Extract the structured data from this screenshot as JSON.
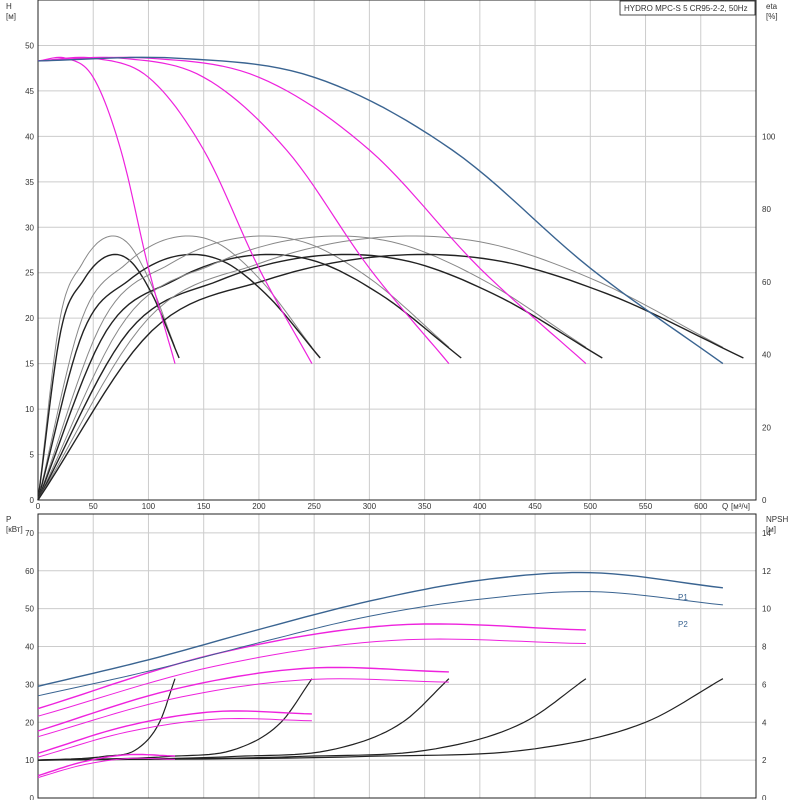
{
  "chart_data": [
    {
      "type": "line",
      "title": "HYDRO MPC-S 5 CR95-2-2, 50Hz",
      "xlabel": "Q [м³/ч]",
      "xlabel_parts": [
        "Q",
        "[м³/ч]"
      ],
      "ylabel_lines": [
        "H",
        "[м]"
      ],
      "ylabel_right_lines": [
        "eta",
        "[%]"
      ],
      "xlim": [
        0,
        650
      ],
      "ylim": [
        0,
        55
      ],
      "ylim_right": [
        0,
        137.5
      ],
      "xticks": [
        "0",
        "50",
        "100",
        "150",
        "200",
        "250",
        "300",
        "350",
        "400",
        "450",
        "500",
        "550",
        "600"
      ],
      "yticks": [
        "0",
        "5",
        "10",
        "15",
        "20",
        "25",
        "30",
        "35",
        "40",
        "45",
        "50"
      ],
      "yticks_right": [
        "0",
        "20",
        "40",
        "60",
        "80",
        "100"
      ],
      "grid": true,
      "colors": {
        "head_total": "#3a6491",
        "head_pumps": "#ee22dd",
        "eta": "#222222",
        "eta_thin": "#888888"
      },
      "head_curves": [
        {
          "pumps": 1,
          "x": [
            0,
            25,
            50,
            75,
            100,
            124
          ],
          "y": [
            48.3,
            48.6,
            46.5,
            38.5,
            25.5,
            15.0
          ]
        },
        {
          "pumps": 2,
          "x": [
            0,
            50,
            100,
            150,
            200,
            248
          ],
          "y": [
            48.3,
            48.6,
            46.5,
            38.5,
            25.5,
            15.0
          ]
        },
        {
          "pumps": 3,
          "x": [
            0,
            75,
            150,
            225,
            300,
            372
          ],
          "y": [
            48.3,
            48.6,
            46.5,
            38.5,
            25.5,
            15.0
          ]
        },
        {
          "pumps": 4,
          "x": [
            0,
            100,
            200,
            300,
            400,
            496
          ],
          "y": [
            48.3,
            48.6,
            46.5,
            38.5,
            25.5,
            15.0
          ]
        },
        {
          "pumps": 5,
          "x": [
            0,
            125,
            250,
            375,
            500,
            620
          ],
          "y": [
            48.3,
            48.6,
            46.5,
            38.5,
            25.5,
            15.0
          ]
        }
      ],
      "eta_curves": [
        {
          "pumps": 1,
          "x": [
            0,
            20,
            40,
            60,
            80,
            100,
            124
          ],
          "y": [
            0,
            50,
            65,
            72,
            71,
            61,
            42
          ]
        },
        {
          "pumps": 2,
          "x": [
            0,
            40,
            80,
            120,
            160,
            200,
            248
          ],
          "y": [
            0,
            50,
            65,
            72,
            71,
            61,
            42
          ]
        },
        {
          "pumps": 3,
          "x": [
            0,
            60,
            120,
            180,
            240,
            300,
            372
          ],
          "y": [
            0,
            50,
            65,
            72,
            71,
            61,
            42
          ]
        },
        {
          "pumps": 4,
          "x": [
            0,
            80,
            160,
            240,
            320,
            400,
            496
          ],
          "y": [
            0,
            50,
            65,
            72,
            71,
            61,
            42
          ]
        },
        {
          "pumps": 5,
          "x": [
            0,
            100,
            200,
            300,
            400,
            500,
            620
          ],
          "y": [
            0,
            50,
            65,
            72,
            71,
            61,
            42
          ]
        }
      ]
    },
    {
      "type": "line",
      "ylabel_lines": [
        "P",
        "[кВт]"
      ],
      "ylabel_right_lines": [
        "NPSH",
        "[м]"
      ],
      "xlim": [
        0,
        650
      ],
      "ylim": [
        0,
        75
      ],
      "ylim_right": [
        0,
        15
      ],
      "yticks": [
        "0",
        "10",
        "20",
        "30",
        "40",
        "50",
        "60",
        "70"
      ],
      "yticks_right": [
        "0",
        "2",
        "4",
        "6",
        "8",
        "10",
        "12",
        "14"
      ],
      "grid": true,
      "series": [
        {
          "name": "P1",
          "x": [
            0,
            100,
            200,
            300,
            400,
            500,
            620
          ],
          "y": [
            29.5,
            36.5,
            44.5,
            52.0,
            57.5,
            59.5,
            55.5
          ]
        },
        {
          "name": "P2",
          "x": [
            0,
            100,
            200,
            300,
            400,
            500,
            620
          ],
          "y": [
            27.0,
            33.5,
            41.0,
            48.0,
            52.5,
            54.5,
            51.0
          ]
        }
      ],
      "power_curves_p1": [
        {
          "pumps": 1,
          "x": [
            0,
            40,
            80,
            124
          ],
          "y": [
            5.9,
            9.5,
            11.4,
            11.1
          ]
        },
        {
          "pumps": 2,
          "x": [
            0,
            80,
            160,
            248
          ],
          "y": [
            11.8,
            19.0,
            22.8,
            22.2
          ]
        },
        {
          "pumps": 3,
          "x": [
            0,
            120,
            240,
            372
          ],
          "y": [
            17.7,
            28.5,
            34.2,
            33.3
          ]
        },
        {
          "pumps": 4,
          "x": [
            0,
            160,
            320,
            496
          ],
          "y": [
            23.6,
            38.0,
            45.6,
            44.4
          ]
        }
      ],
      "power_curves_p2": [
        {
          "pumps": 1,
          "x": [
            0,
            40,
            80,
            124
          ],
          "y": [
            5.4,
            8.7,
            10.4,
            10.2
          ]
        },
        {
          "pumps": 2,
          "x": [
            0,
            80,
            160,
            248
          ],
          "y": [
            10.8,
            17.4,
            20.8,
            20.4
          ]
        },
        {
          "pumps": 3,
          "x": [
            0,
            120,
            240,
            372
          ],
          "y": [
            16.2,
            26.1,
            31.2,
            30.6
          ]
        },
        {
          "pumps": 4,
          "x": [
            0,
            160,
            320,
            496
          ],
          "y": [
            21.6,
            34.8,
            41.6,
            40.8
          ]
        }
      ],
      "npsh_curves": [
        {
          "pumps": 1,
          "x": [
            0,
            60,
            90,
            110,
            124
          ],
          "y": [
            2.0,
            2.2,
            2.6,
            4.0,
            6.3
          ]
        },
        {
          "pumps": 2,
          "x": [
            0,
            120,
            180,
            220,
            248
          ],
          "y": [
            2.0,
            2.2,
            2.6,
            4.0,
            6.3
          ]
        },
        {
          "pumps": 3,
          "x": [
            0,
            180,
            270,
            330,
            372
          ],
          "y": [
            2.0,
            2.2,
            2.6,
            4.0,
            6.3
          ]
        },
        {
          "pumps": 4,
          "x": [
            0,
            240,
            360,
            440,
            496
          ],
          "y": [
            2.0,
            2.2,
            2.6,
            4.0,
            6.3
          ]
        },
        {
          "pumps": 5,
          "x": [
            0,
            300,
            450,
            550,
            620
          ],
          "y": [
            2.0,
            2.2,
            2.6,
            4.0,
            6.3
          ]
        }
      ]
    }
  ]
}
